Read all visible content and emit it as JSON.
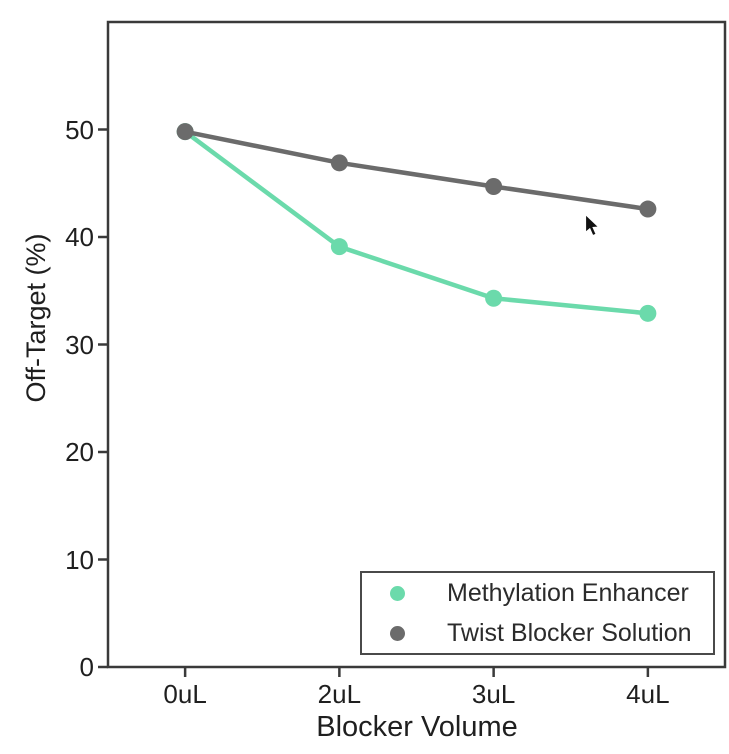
{
  "chart_data": {
    "type": "line",
    "title": "",
    "xlabel": "Blocker Volume",
    "ylabel": "Off-Target (%)",
    "categories": [
      "0uL",
      "2uL",
      "3uL",
      "4uL"
    ],
    "series": [
      {
        "name": "Methylation Enhancer",
        "color": "#6BDAAB",
        "values": [
          49.8,
          39.1,
          34.3,
          32.9
        ]
      },
      {
        "name": "Twist Blocker Solution",
        "color": "#6B6B6B",
        "values": [
          49.8,
          46.9,
          44.7,
          42.6
        ]
      }
    ],
    "ylim": [
      0,
      60
    ],
    "yticks": [
      0,
      10,
      20,
      30,
      40,
      50
    ],
    "grid": false,
    "legend_position": "lower right",
    "marker": "circle"
  },
  "colors": {
    "spine": "#3a3a3a",
    "tick_text": "#1f1f1f",
    "legend_border": "#4a4a4a",
    "background": "#ffffff"
  }
}
